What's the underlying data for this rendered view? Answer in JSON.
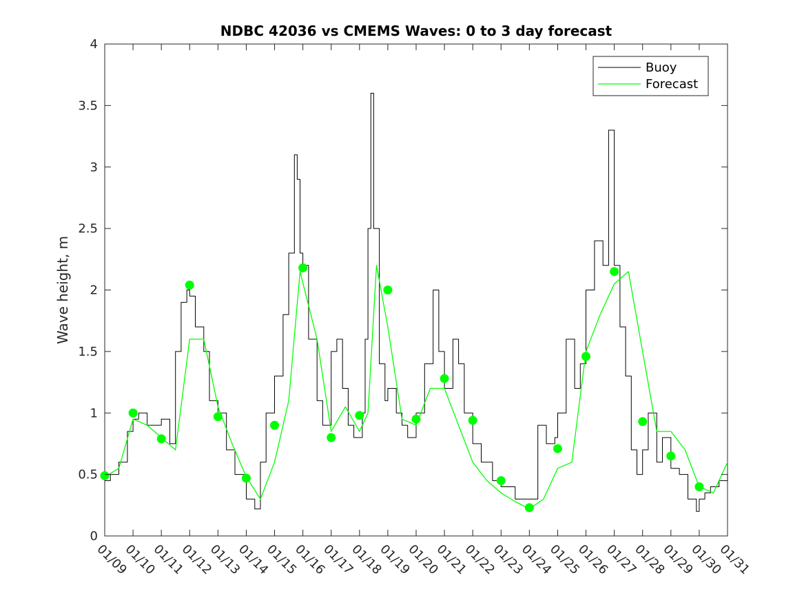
{
  "chart_data": {
    "type": "line",
    "title": "NDBC 42036 vs CMEMS Waves: 0 to 3 day forecast",
    "xlabel": "",
    "ylabel": "Wave height, m",
    "xlim": [
      0,
      22
    ],
    "ylim": [
      0,
      4
    ],
    "x_tick_labels": [
      "01/09",
      "01/10",
      "01/11",
      "01/12",
      "01/13",
      "01/14",
      "01/15",
      "01/16",
      "01/17",
      "01/18",
      "01/19",
      "01/20",
      "01/21",
      "01/22",
      "01/23",
      "01/24",
      "01/25",
      "01/26",
      "01/27",
      "01/28",
      "01/29",
      "01/30",
      "01/31"
    ],
    "y_ticks": [
      0,
      0.5,
      1,
      1.5,
      2,
      2.5,
      3,
      3.5,
      4
    ],
    "y_tick_labels": [
      "0",
      "0.5",
      "1",
      "1.5",
      "2",
      "2.5",
      "3",
      "3.5",
      "4"
    ],
    "legend": {
      "position": "top-right",
      "entries": [
        {
          "label": "Buoy",
          "color": "#000000"
        },
        {
          "label": "Forecast",
          "color": "#00ff00"
        }
      ]
    },
    "series": [
      {
        "name": "Buoy",
        "color": "#000000",
        "x": [
          0,
          0.2,
          0.5,
          0.8,
          1.0,
          1.2,
          1.5,
          1.8,
          2.0,
          2.3,
          2.5,
          2.7,
          2.9,
          3.0,
          3.2,
          3.5,
          3.7,
          4.0,
          4.3,
          4.6,
          5.0,
          5.3,
          5.5,
          5.7,
          6.0,
          6.3,
          6.5,
          6.7,
          6.8,
          6.9,
          7.0,
          7.2,
          7.5,
          7.7,
          8.0,
          8.2,
          8.4,
          8.6,
          8.8,
          9.0,
          9.1,
          9.2,
          9.3,
          9.4,
          9.5,
          9.7,
          9.9,
          10.0,
          10.3,
          10.5,
          10.7,
          11.0,
          11.3,
          11.6,
          11.8,
          12.0,
          12.3,
          12.5,
          12.7,
          13.0,
          13.3,
          13.7,
          14.0,
          14.5,
          15.0,
          15.3,
          15.6,
          15.9,
          16.0,
          16.3,
          16.6,
          16.8,
          17.0,
          17.3,
          17.6,
          17.8,
          18.0,
          18.2,
          18.4,
          18.6,
          18.8,
          19.0,
          19.2,
          19.5,
          19.7,
          20.0,
          20.3,
          20.6,
          20.9,
          21.0,
          21.2,
          21.4,
          21.7,
          22.0
        ],
        "values": [
          0.45,
          0.5,
          0.6,
          0.85,
          0.95,
          1.0,
          0.9,
          0.9,
          0.95,
          0.75,
          1.5,
          1.9,
          2.0,
          1.95,
          1.7,
          1.5,
          1.1,
          1.0,
          0.7,
          0.5,
          0.3,
          0.22,
          0.6,
          1.0,
          1.3,
          1.8,
          2.3,
          3.1,
          2.9,
          2.3,
          2.2,
          1.6,
          1.1,
          0.9,
          1.5,
          1.6,
          1.2,
          0.9,
          0.8,
          0.8,
          1.0,
          1.6,
          2.5,
          3.6,
          2.5,
          1.4,
          1.1,
          1.2,
          1.0,
          0.9,
          0.8,
          1.0,
          1.4,
          2.0,
          1.5,
          1.2,
          1.6,
          1.4,
          1.0,
          0.75,
          0.6,
          0.45,
          0.4,
          0.3,
          0.3,
          0.9,
          0.75,
          0.8,
          1.0,
          1.6,
          1.2,
          1.4,
          2.0,
          2.4,
          2.2,
          3.3,
          2.2,
          1.7,
          1.3,
          0.7,
          0.5,
          0.7,
          1.0,
          0.6,
          0.8,
          0.55,
          0.5,
          0.3,
          0.2,
          0.3,
          0.35,
          0.4,
          0.45,
          0.5
        ]
      },
      {
        "name": "Forecast",
        "color": "#00ff00",
        "x": [
          0,
          0.5,
          1.0,
          1.5,
          2.0,
          2.5,
          3.0,
          3.5,
          4.0,
          4.5,
          5.0,
          5.5,
          6.0,
          6.5,
          6.9,
          7.5,
          8.0,
          8.5,
          9.0,
          9.3,
          9.6,
          10.0,
          10.5,
          11.0,
          11.5,
          12.0,
          12.5,
          13.0,
          13.5,
          14.0,
          14.5,
          15.0,
          15.5,
          16.0,
          16.5,
          17.0,
          17.5,
          18.0,
          18.5,
          19.0,
          19.5,
          20.0,
          20.5,
          21.0,
          21.5,
          22.0
        ],
        "values": [
          0.48,
          0.55,
          0.95,
          0.9,
          0.8,
          0.7,
          1.6,
          1.6,
          1.05,
          0.75,
          0.48,
          0.3,
          0.6,
          1.1,
          2.15,
          1.6,
          0.85,
          1.05,
          0.85,
          1.0,
          2.2,
          1.7,
          0.95,
          0.9,
          1.2,
          1.2,
          0.9,
          0.6,
          0.45,
          0.35,
          0.28,
          0.22,
          0.3,
          0.55,
          0.6,
          1.5,
          1.8,
          2.05,
          2.15,
          1.5,
          0.85,
          0.85,
          0.7,
          0.4,
          0.35,
          0.6
        ]
      }
    ],
    "markers": {
      "series": "Forecast",
      "x": [
        0,
        1,
        2,
        3,
        4,
        5,
        6,
        7,
        8,
        9,
        10,
        11,
        12,
        13,
        14,
        15,
        16,
        17,
        18,
        19,
        20,
        21
      ],
      "values": [
        0.49,
        1.0,
        0.79,
        2.04,
        0.97,
        0.47,
        0.9,
        2.18,
        0.8,
        0.98,
        2.0,
        0.95,
        1.28,
        0.94,
        0.45,
        0.23,
        0.71,
        1.46,
        2.15,
        0.93,
        0.65,
        0.4
      ]
    },
    "grid": false
  }
}
